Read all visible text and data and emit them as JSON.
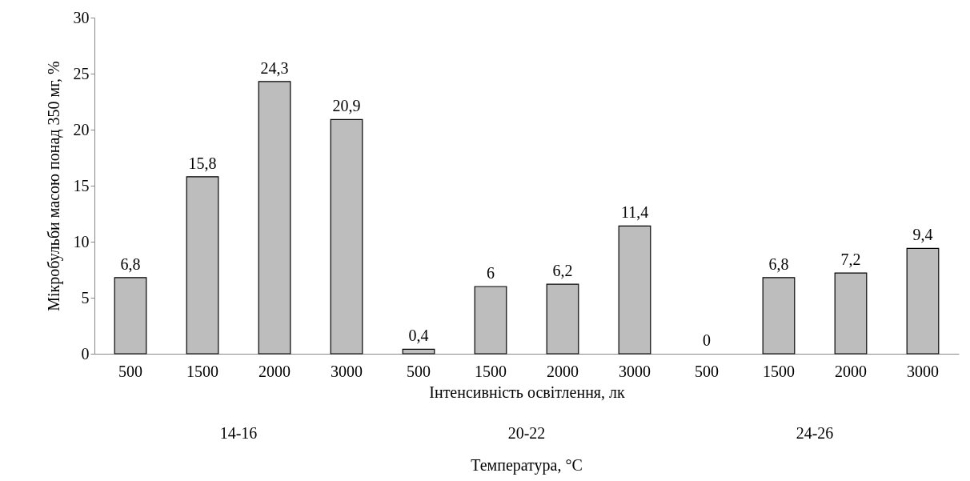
{
  "chart_data": {
    "type": "bar",
    "ylabel": "Мікробульби масою понад 350 мг, %",
    "xlabel": "Інтенсивність освітлення, лк",
    "categories": [
      "500",
      "1500",
      "2000",
      "3000",
      "500",
      "1500",
      "2000",
      "3000",
      "500",
      "1500",
      "2000",
      "3000"
    ],
    "values": [
      6.8,
      15.8,
      24.3,
      20.9,
      0.4,
      6,
      6.2,
      11.4,
      0,
      6.8,
      7.2,
      9.4
    ],
    "value_labels": [
      "6,8",
      "15,8",
      "24,3",
      "20,9",
      "0,4",
      "6",
      "6,2",
      "11,4",
      "0",
      "6,8",
      "7,2",
      "9,4"
    ],
    "color": "#bdbdbd",
    "ylim": [
      0,
      30
    ],
    "yticks": [
      0,
      5,
      10,
      15,
      20,
      25,
      30
    ],
    "grid": false,
    "annotations": [
      "14-16",
      "20-22",
      "24-26",
      "Температура, °C"
    ]
  }
}
